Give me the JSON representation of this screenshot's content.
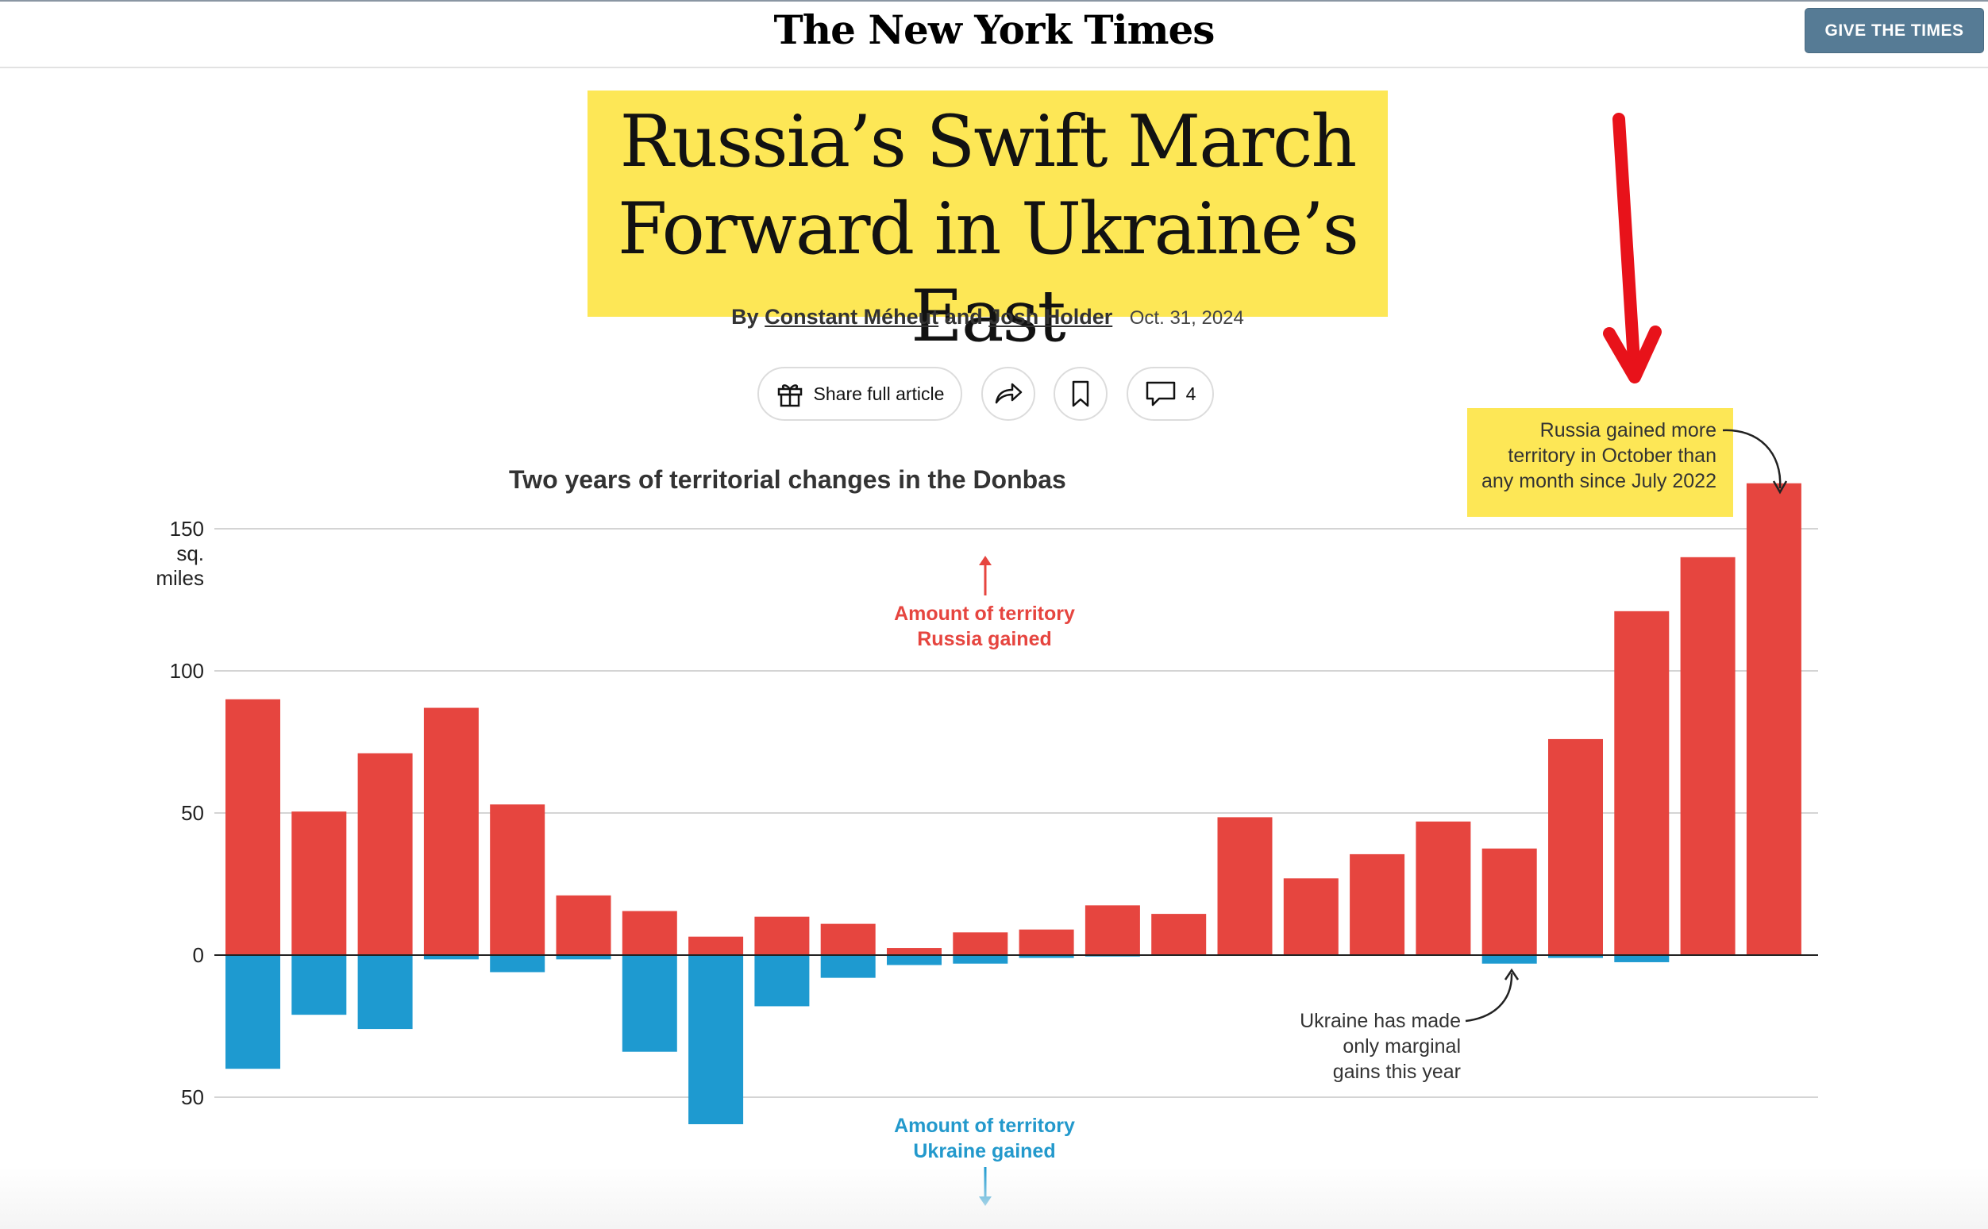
{
  "header": {
    "masthead": "The New York Times",
    "give_button": "GIVE THE TIMES"
  },
  "article": {
    "headline_line1": "Russia’s Swift March",
    "headline_line2": "Forward in Ukraine’s East",
    "by": "By",
    "author1": "Constant Méheut",
    "and": "and",
    "author2": "Josh Holder",
    "date": "Oct. 31, 2024"
  },
  "actions": {
    "share_label": "Share full article",
    "comments_count": "4"
  },
  "annotations": {
    "russia_label_line1": "Amount of territory",
    "russia_label_line2": "Russia gained",
    "ukraine_label_line1": "Amount of territory",
    "ukraine_label_line2": "Ukraine gained",
    "october_note_line1": "Russia gained more",
    "october_note_line2": "territory in October than",
    "october_note_line3": "any month since July 2022",
    "ukraine_note_line1": "Ukraine has made",
    "ukraine_note_line2": "only marginal",
    "ukraine_note_line3": "gains this year"
  },
  "colors": {
    "russia": "#e6453f",
    "ukraine": "#1e9ad0",
    "highlight": "#fde756",
    "marker_arrow": "#e8121a",
    "give_button": "#567b95"
  },
  "chart_data": {
    "type": "bar",
    "title": "Two years of territorial changes in the Donbas",
    "ylabel": "sq. miles",
    "y_tick_labels": [
      "150",
      "100",
      "50",
      "0",
      "50"
    ],
    "y_tick_values": [
      150,
      100,
      50,
      0,
      -50
    ],
    "ylim": [
      -95,
      167
    ],
    "grid": true,
    "series": [
      {
        "name": "Amount of territory Russia gained",
        "values": [
          90,
          50.5,
          71,
          87,
          53,
          21,
          15.5,
          6.5,
          13.5,
          11,
          2.5,
          8,
          9,
          17.5,
          14.5,
          48.5,
          27,
          35.5,
          47,
          37.5,
          76,
          121,
          140,
          166
        ]
      },
      {
        "name": "Amount of territory Ukraine gained",
        "values": [
          40,
          21,
          26,
          1.5,
          6,
          1.5,
          34,
          59.5,
          18,
          8,
          3.5,
          3,
          1,
          0.5,
          0,
          0,
          0,
          0,
          0,
          3,
          1,
          2.5,
          0,
          0
        ]
      }
    ]
  }
}
